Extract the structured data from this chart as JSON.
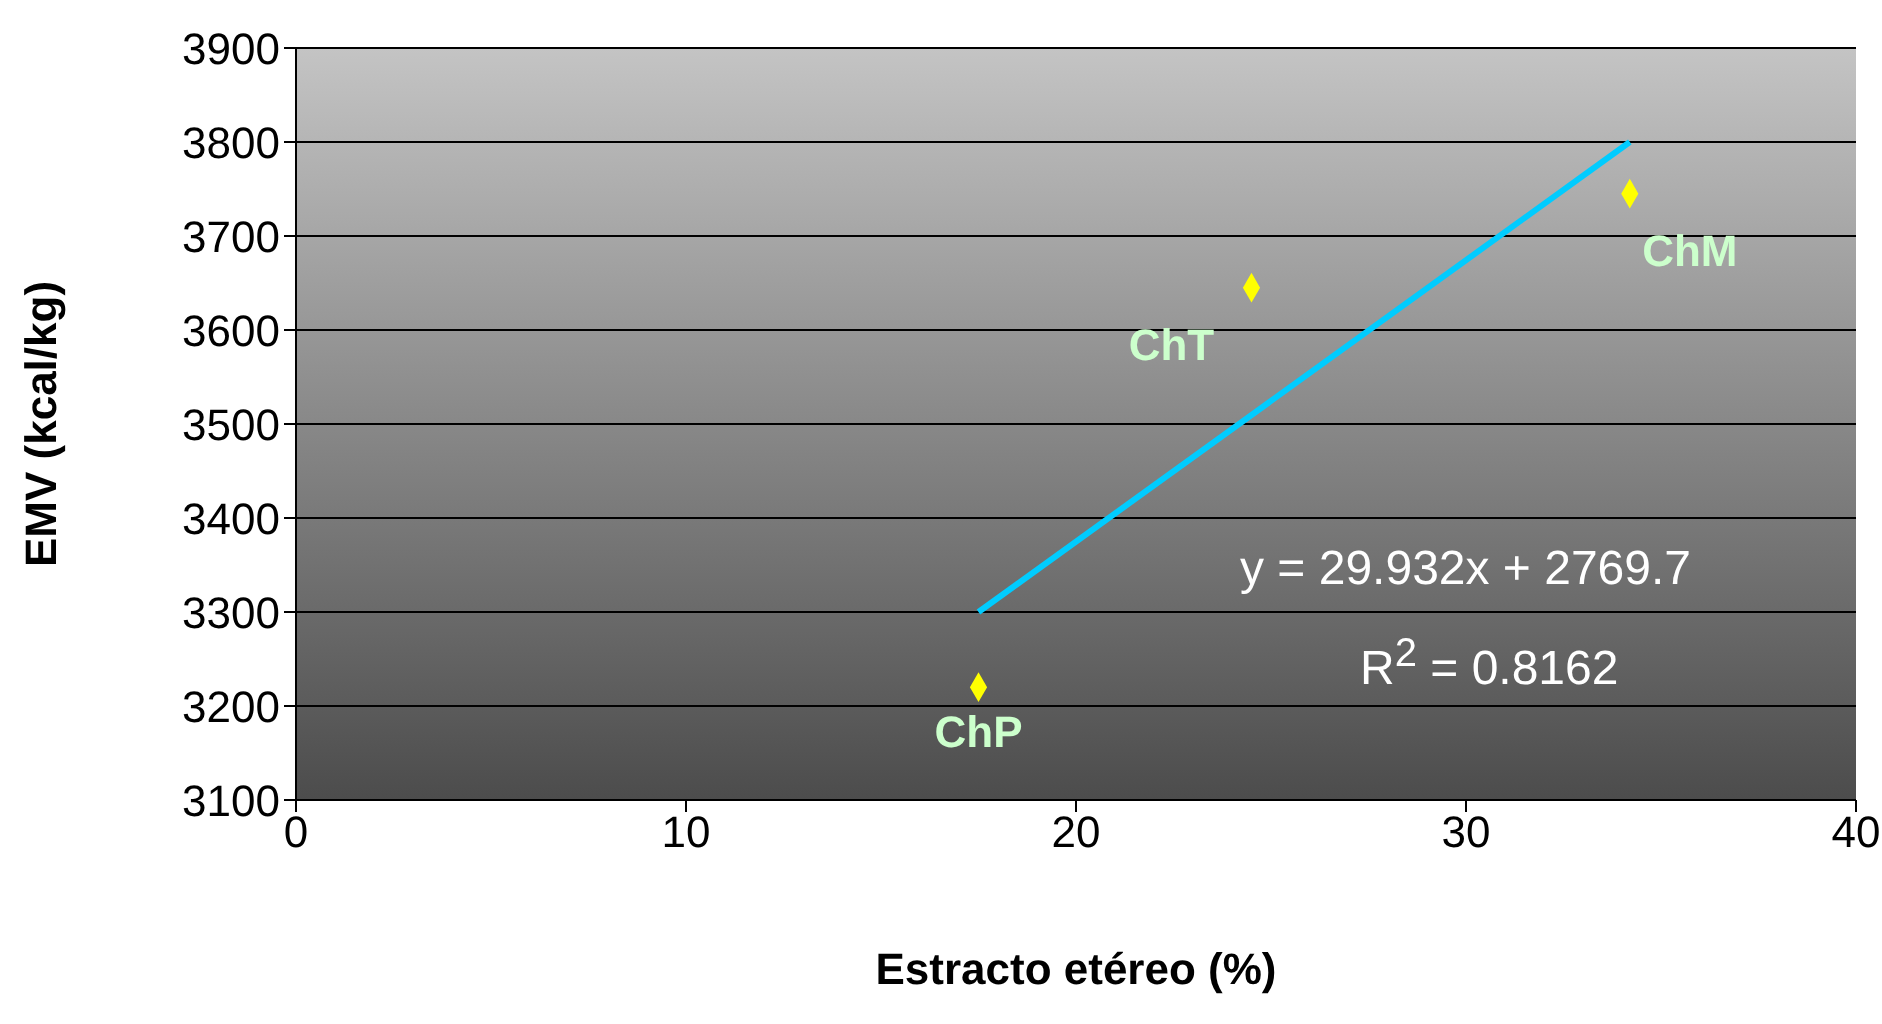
{
  "chart_data": {
    "type": "scatter",
    "xlabel": "Estracto etéreo (%)",
    "ylabel": "EMV (kcal/kg)",
    "xlim": [
      0,
      40
    ],
    "xticks": [
      0,
      10,
      20,
      30,
      40
    ],
    "ylim": [
      3100,
      3900
    ],
    "yticks": [
      3100,
      3200,
      3300,
      3400,
      3500,
      3600,
      3700,
      3800,
      3900
    ],
    "grid": "y",
    "series": [
      {
        "color": "#ffff00",
        "marker": "diamond",
        "x": [
          17.5,
          24.5,
          34.2
        ],
        "values": [
          3220,
          3645,
          3745
        ]
      },
      {
        "type": "line",
        "color": "#00ccff",
        "x": [
          17.5,
          34.2
        ],
        "values": [
          3300,
          3800
        ]
      }
    ],
    "annotations": [
      {
        "text": "ChP",
        "x": 17.5,
        "y": 3220
      },
      {
        "text": "ChT",
        "x": 24.5,
        "y": 3645
      },
      {
        "text": "ChM",
        "x": 34.2,
        "y": 3745
      },
      "y = 29.932x + 2769.7",
      "R$^{2}$ = 0.8162"
    ]
  }
}
